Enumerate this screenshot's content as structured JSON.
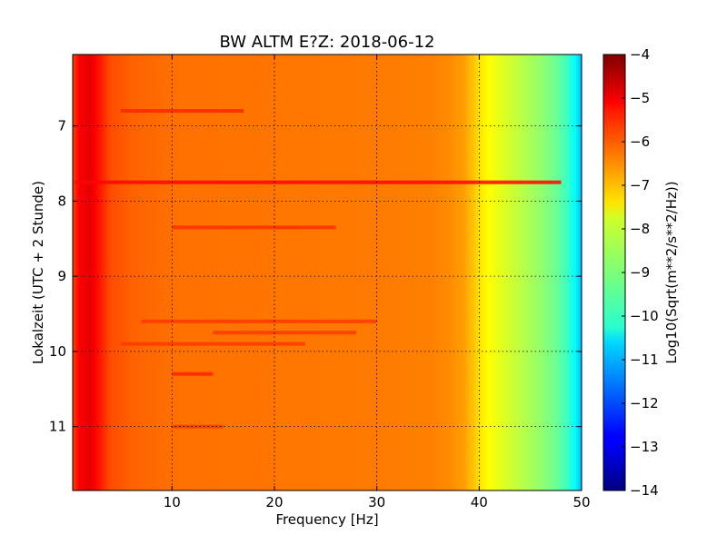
{
  "chart_data": {
    "type": "heatmap",
    "title": "BW ALTM E?Z: 2018-06-12",
    "xlabel": "Frequency [Hz]",
    "ylabel": "Lokalzeit (UTC + 2 Stunde)",
    "xlim": [
      0.3,
      50
    ],
    "ylim": [
      11.85,
      6.05
    ],
    "y_inverted": true,
    "grid": true,
    "x_ticks": [
      10,
      20,
      30,
      40,
      50
    ],
    "x_tick_labels": [
      "10",
      "20",
      "30",
      "40",
      "50"
    ],
    "y_ticks": [
      7,
      8,
      9,
      10,
      11
    ],
    "y_tick_labels": [
      "7",
      "8",
      "9",
      "10",
      "11"
    ],
    "colormap": "jet",
    "colorbar": {
      "label": "Log10(Sqrt(m**2/s**2/Hz))",
      "range": [
        -14,
        -4
      ],
      "ticks": [
        -4,
        -5,
        -6,
        -7,
        -8,
        -9,
        -10,
        -11,
        -12,
        -13,
        -14
      ],
      "tick_labels": [
        "−4",
        "−5",
        "−6",
        "−7",
        "−8",
        "−9",
        "−10",
        "−11",
        "−12",
        "−13",
        "−14"
      ]
    },
    "spectral_profile": {
      "frequency_hz": [
        0.3,
        1.0,
        2.0,
        3.0,
        4.0,
        6.0,
        10.0,
        20.0,
        30.0,
        35.0,
        37.0,
        38.5,
        39.5,
        40.3,
        42.0,
        44.0,
        46.0,
        47.5,
        48.5,
        49.3,
        50.0
      ],
      "log_amplitude": [
        -5.9,
        -5.2,
        -5.0,
        -5.5,
        -6.0,
        -6.2,
        -6.35,
        -6.4,
        -6.45,
        -6.5,
        -6.6,
        -6.8,
        -7.2,
        -7.6,
        -8.0,
        -8.4,
        -8.8,
        -9.2,
        -9.6,
        -10.2,
        -10.9
      ]
    },
    "transient_features": [
      {
        "time": 7.75,
        "freq_range": [
          0.5,
          48
        ],
        "log_amplitude": -5.3
      },
      {
        "time": 6.8,
        "freq_range": [
          5,
          17
        ],
        "log_amplitude": -5.6
      },
      {
        "time": 8.35,
        "freq_range": [
          10,
          26
        ],
        "log_amplitude": -5.7
      },
      {
        "time": 9.6,
        "freq_range": [
          7,
          30
        ],
        "log_amplitude": -5.8
      },
      {
        "time": 9.75,
        "freq_range": [
          14,
          28
        ],
        "log_amplitude": -5.8
      },
      {
        "time": 10.3,
        "freq_range": [
          10,
          14
        ],
        "log_amplitude": -5.6
      },
      {
        "time": 9.9,
        "freq_range": [
          5,
          23
        ],
        "log_amplitude": -5.8
      },
      {
        "time": 11.0,
        "freq_range": [
          10,
          15
        ],
        "log_amplitude": -5.8
      }
    ]
  }
}
